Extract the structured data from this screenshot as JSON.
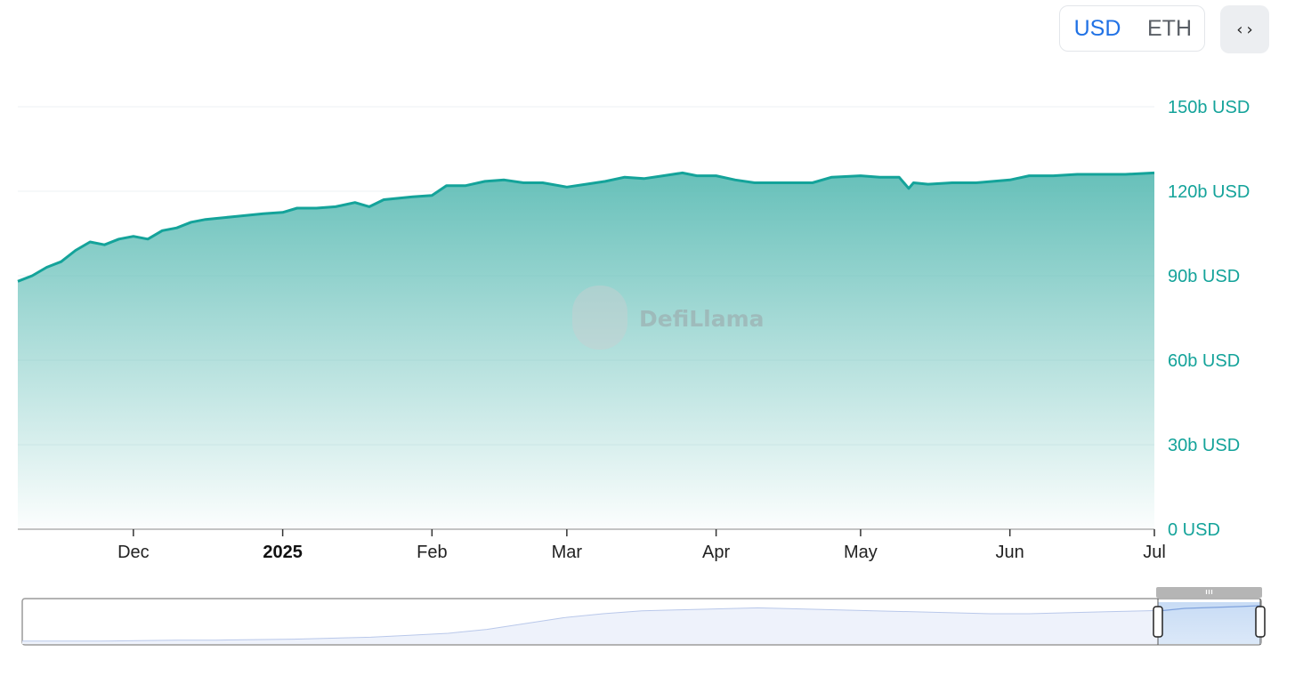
{
  "toggle": {
    "usd_label": "USD",
    "eth_label": "ETH",
    "selected": "USD"
  },
  "embed_button": {
    "icon": "code-brackets-icon",
    "glyph": "‹›"
  },
  "watermark": {
    "text": "DefiLlama"
  },
  "colors": {
    "line": "#14a39a",
    "fill_top": "#5fbdb6",
    "axis_text": "#14a39a",
    "selected": "#2172e5"
  },
  "chart_data": {
    "type": "area",
    "title": "",
    "xlabel": "",
    "ylabel": "",
    "x_ticks": [
      {
        "date": "2024-12-01",
        "label": "Dec",
        "bold": false
      },
      {
        "date": "2025-01-01",
        "label": "2025",
        "bold": true
      },
      {
        "date": "2025-02-01",
        "label": "Feb",
        "bold": false
      },
      {
        "date": "2025-03-01",
        "label": "Mar",
        "bold": false
      },
      {
        "date": "2025-04-01",
        "label": "Apr",
        "bold": false
      },
      {
        "date": "2025-05-01",
        "label": "May",
        "bold": false
      },
      {
        "date": "2025-06-01",
        "label": "Jun",
        "bold": false
      },
      {
        "date": "2025-07-01",
        "label": "Jul",
        "bold": false
      }
    ],
    "y_ticks": [
      {
        "value": 0,
        "label": "0 USD"
      },
      {
        "value": 30,
        "label": "30b USD"
      },
      {
        "value": 60,
        "label": "60b USD"
      },
      {
        "value": 90,
        "label": "90b USD"
      },
      {
        "value": 120,
        "label": "120b USD"
      },
      {
        "value": 150,
        "label": "150b USD"
      }
    ],
    "ylim": [
      0,
      150
    ],
    "xlim": [
      "2024-11-07",
      "2025-07-01"
    ],
    "grid": true,
    "series": [
      {
        "x": [
          "2024-11-07",
          "2024-11-10",
          "2024-11-13",
          "2024-11-16",
          "2024-11-19",
          "2024-11-22",
          "2024-11-25",
          "2024-11-28",
          "2024-12-01",
          "2024-12-04",
          "2024-12-07",
          "2024-12-10",
          "2024-12-13",
          "2024-12-16",
          "2024-12-19",
          "2024-12-22",
          "2024-12-25",
          "2024-12-28",
          "2025-01-01",
          "2025-01-04",
          "2025-01-08",
          "2025-01-12",
          "2025-01-16",
          "2025-01-19",
          "2025-01-22",
          "2025-01-25",
          "2025-01-28",
          "2025-02-01",
          "2025-02-04",
          "2025-02-08",
          "2025-02-12",
          "2025-02-16",
          "2025-02-20",
          "2025-02-24",
          "2025-03-01",
          "2025-03-05",
          "2025-03-09",
          "2025-03-13",
          "2025-03-17",
          "2025-03-21",
          "2025-03-25",
          "2025-03-28",
          "2025-04-01",
          "2025-04-05",
          "2025-04-09",
          "2025-04-13",
          "2025-04-17",
          "2025-04-21",
          "2025-04-25",
          "2025-05-01",
          "2025-05-05",
          "2025-05-09",
          "2025-05-11",
          "2025-05-12",
          "2025-05-15",
          "2025-05-20",
          "2025-05-25",
          "2025-06-01",
          "2025-06-05",
          "2025-06-10",
          "2025-06-15",
          "2025-06-20",
          "2025-06-25",
          "2025-07-01"
        ],
        "values": [
          88,
          90,
          93,
          95,
          99,
          102,
          101,
          103,
          104,
          103,
          106,
          107,
          109,
          110,
          110.5,
          111,
          111.5,
          112,
          112.5,
          114,
          114,
          114.5,
          116,
          114.5,
          117,
          117.5,
          118,
          118.5,
          122,
          122,
          123.5,
          124,
          123,
          123,
          121.5,
          122.5,
          123.5,
          125,
          124.5,
          125.5,
          126.5,
          125.5,
          125.5,
          124,
          123,
          123,
          123,
          123,
          125,
          125.5,
          125,
          125,
          121,
          123,
          122.5,
          123,
          123,
          124,
          125.5,
          125.5,
          126,
          126,
          126,
          126.5
        ]
      }
    ]
  },
  "navigator": {
    "handle_icon": "grip-icon",
    "selected_range": [
      "2024-11-07",
      "2025-07-01"
    ],
    "overview": [
      2,
      2,
      2,
      2.5,
      3,
      3,
      3.5,
      4,
      5,
      6,
      8,
      10,
      14,
      20,
      26,
      30,
      33,
      34,
      35,
      36,
      35,
      34,
      33,
      32,
      31,
      30,
      30,
      31,
      32,
      33,
      34,
      34.5,
      35
    ]
  }
}
